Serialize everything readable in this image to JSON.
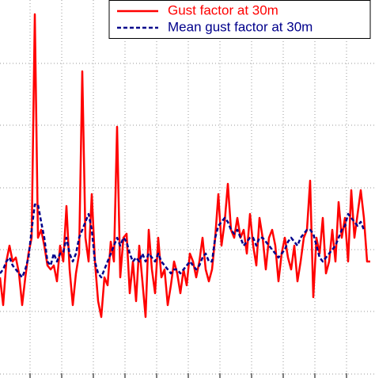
{
  "chart_data": {
    "type": "line",
    "x": [
      0,
      1,
      2,
      3,
      4,
      5,
      6,
      7,
      8,
      9,
      10,
      11,
      12,
      13,
      14,
      15,
      16,
      17,
      18,
      19,
      20,
      21,
      22,
      23,
      24,
      25,
      26,
      27,
      28,
      29,
      30,
      31,
      32,
      33,
      34,
      35,
      36,
      37,
      38,
      39,
      40,
      41,
      42,
      43,
      44,
      45,
      46,
      47,
      48,
      49,
      50,
      51,
      52,
      53,
      54,
      55,
      56,
      57,
      58,
      59,
      60,
      61,
      62,
      63,
      64,
      65,
      66,
      67,
      68,
      69,
      70,
      71,
      72,
      73,
      74,
      75,
      76,
      77,
      78,
      79,
      80,
      81,
      82,
      83,
      84,
      85,
      86,
      87,
      88,
      89,
      90,
      91,
      92,
      93,
      94,
      95,
      96,
      97,
      98,
      99,
      100,
      101,
      102,
      103,
      104,
      105,
      106,
      107,
      108,
      109,
      110,
      111,
      112,
      113,
      114,
      115,
      116,
      117
    ],
    "series": [
      {
        "name": "Gust factor at 30m",
        "color": "#ff0000",
        "dash": false,
        "values": [
          122,
          87,
          142,
          162,
          142,
          147,
          127,
          87,
          122,
          152,
          172,
          454,
          172,
          182,
          162,
          137,
          132,
          137,
          117,
          162,
          142,
          212,
          132,
          87,
          127,
          152,
          382,
          172,
          142,
          227,
          142,
          92,
          72,
          122,
          112,
          167,
          142,
          312,
          122,
          172,
          177,
          102,
          142,
          92,
          162,
          117,
          72,
          182,
          132,
          102,
          172,
          122,
          132,
          87,
          112,
          142,
          127,
          102,
          132,
          112,
          152,
          142,
          122,
          142,
          172,
          132,
          117,
          132,
          172,
          227,
          162,
          192,
          240,
          182,
          172,
          197,
          172,
          182,
          152,
          202,
          162,
          137,
          197,
          172,
          132,
          172,
          182,
          162,
          117,
          152,
          172,
          147,
          132,
          162,
          117,
          142,
          172,
          182,
          244,
          97,
          172,
          152,
          197,
          127,
          142,
          182,
          142,
          217,
          172,
          197,
          142,
          232,
          172,
          202,
          232,
          197,
          142,
          142
        ]
      },
      {
        "name": "Mean gust factor at 30m",
        "color": "#00008b",
        "dash": true,
        "values": [
          127,
          132,
          142,
          147,
          137,
          132,
          127,
          122,
          132,
          147,
          182,
          214,
          214,
          192,
          172,
          142,
          137,
          152,
          142,
          152,
          154,
          172,
          152,
          142,
          152,
          172,
          182,
          192,
          202,
          182,
          142,
          127,
          122,
          132,
          142,
          152,
          162,
          172,
          162,
          172,
          167,
          152,
          142,
          147,
          142,
          152,
          142,
          152,
          147,
          142,
          152,
          142,
          137,
          132,
          127,
          132,
          132,
          127,
          132,
          137,
          142,
          137,
          132,
          137,
          147,
          152,
          142,
          142,
          172,
          187,
          192,
          197,
          192,
          182,
          177,
          182,
          172,
          162,
          167,
          172,
          172,
          162,
          172,
          172,
          167,
          162,
          157,
          152,
          147,
          152,
          157,
          167,
          172,
          167,
          162,
          172,
          177,
          182,
          182,
          177,
          162,
          147,
          142,
          147,
          152,
          157,
          162,
          172,
          182,
          187,
          202,
          197,
          192,
          187,
          192,
          182,
          null,
          null
        ]
      }
    ],
    "xlim": [
      0,
      118.5
    ],
    "xticks": [
      9.5,
      19.5,
      29.5,
      39.5,
      49.5,
      59.5,
      69.5,
      79.5,
      89.5,
      99.5,
      109.5
    ],
    "ylim": [
      -5,
      472
    ],
    "yticks": [
      0,
      79,
      157,
      235,
      314,
      392
    ],
    "grid": true,
    "legend": "upper right"
  }
}
